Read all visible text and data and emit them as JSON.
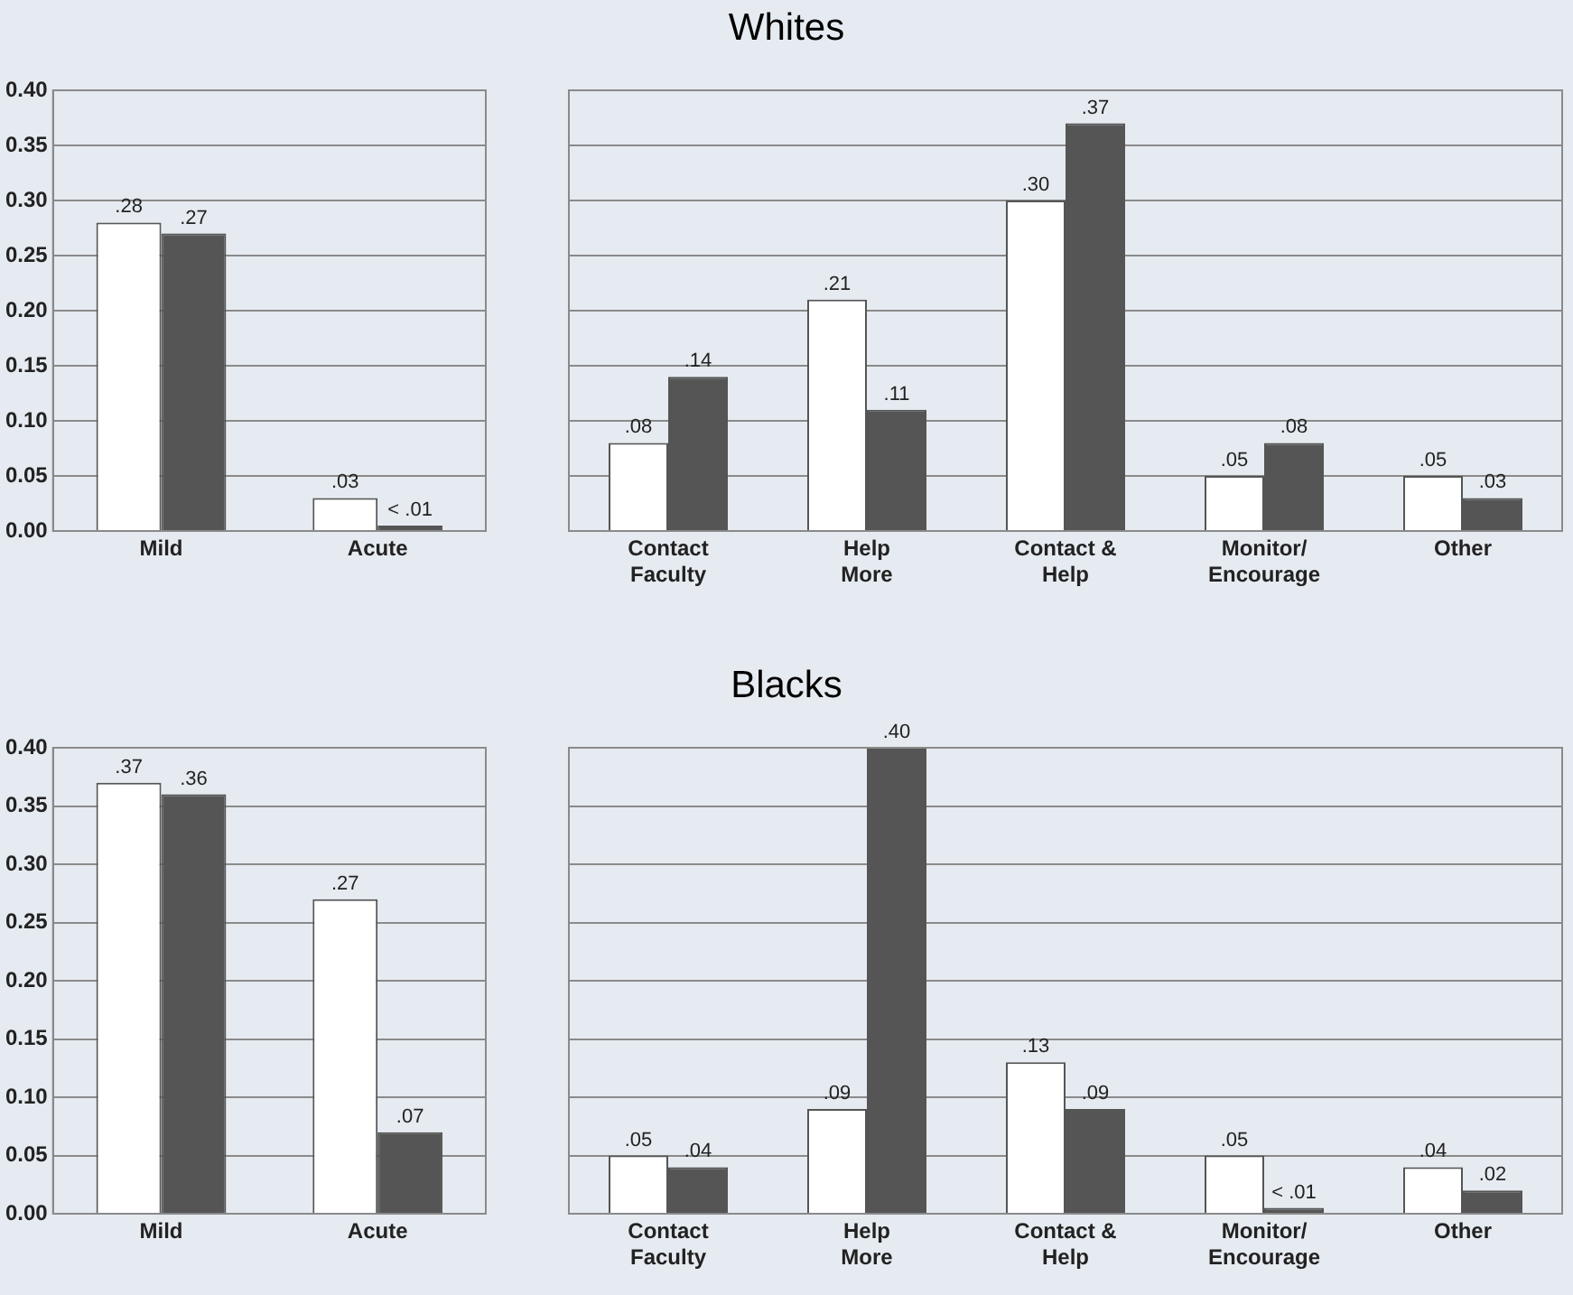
{
  "chart_data": [
    {
      "type": "bar",
      "categories": [
        "Mild",
        "Acute"
      ],
      "ylim": [
        0,
        0.4
      ],
      "yticks": [
        {
          "value": 0,
          "label": "0.00"
        },
        {
          "value": 0.05,
          "label": "0.05"
        },
        {
          "value": 0.1,
          "label": "0.10"
        },
        {
          "value": 0.15,
          "label": "0.15"
        },
        {
          "value": 0.2,
          "label": "0.20"
        },
        {
          "value": 0.25,
          "label": "0.25"
        },
        {
          "value": 0.3,
          "label": "0.30"
        },
        {
          "value": 0.35,
          "label": "0.35"
        },
        {
          "value": 0.4,
          "label": "0.40"
        }
      ],
      "grid": "y",
      "series": [
        {
          "color": "#ffffff",
          "values": [
            0.28,
            0.03
          ],
          "value_labels": [
            ".28",
            ".03"
          ]
        },
        {
          "color": "#555555",
          "values": [
            0.27,
            0.005
          ],
          "value_labels": [
            ".27",
            "< .01"
          ]
        }
      ]
    },
    {
      "type": "bar",
      "title": "Whites",
      "categories": [
        "Contact Faculty",
        "Help More",
        "Contact & Help",
        "Monitor/Encourage",
        "Other"
      ],
      "ylim": [
        0,
        0.4
      ],
      "yticks": [
        0,
        0.05,
        0.1,
        0.15,
        0.2,
        0.25,
        0.3,
        0.35,
        0.4
      ],
      "grid": "y",
      "tick_labels": "x",
      "series": [
        {
          "color": "#ffffff",
          "values": [
            0.08,
            0.21,
            0.3,
            0.05,
            0.05
          ],
          "value_labels": [
            ".08",
            ".21",
            ".30",
            ".05",
            ".05"
          ]
        },
        {
          "color": "#555555",
          "values": [
            0.14,
            0.11,
            0.37,
            0.08,
            0.03
          ],
          "value_labels": [
            ".14",
            ".11",
            ".37",
            ".08",
            ".03"
          ]
        }
      ]
    },
    {
      "type": "bar",
      "categories": [
        "Mild",
        "Acute"
      ],
      "ylim": [
        0,
        0.4
      ],
      "yticks": [
        {
          "value": 0,
          "label": "0.00"
        },
        {
          "value": 0.05,
          "label": "0.05"
        },
        {
          "value": 0.1,
          "label": "0.10"
        },
        {
          "value": 0.15,
          "label": "0.15"
        },
        {
          "value": 0.2,
          "label": "0.20"
        },
        {
          "value": 0.25,
          "label": "0.25"
        },
        {
          "value": 0.3,
          "label": "0.30"
        },
        {
          "value": 0.35,
          "label": "0.35"
        },
        {
          "value": 0.4,
          "label": "0.40"
        }
      ],
      "grid": "y",
      "series": [
        {
          "color": "#ffffff",
          "values": [
            0.37,
            0.27
          ],
          "value_labels": [
            ".37",
            ".27"
          ]
        },
        {
          "color": "#555555",
          "values": [
            0.36,
            0.07
          ],
          "value_labels": [
            ".36",
            ".07"
          ]
        }
      ]
    },
    {
      "type": "bar",
      "title": "Blacks",
      "categories": [
        "Contact Faculty",
        "Help More",
        "Contact & Help",
        "Monitor/Encourage",
        "Other"
      ],
      "ylim": [
        0,
        0.4
      ],
      "yticks": [
        0,
        0.05,
        0.1,
        0.15,
        0.2,
        0.25,
        0.3,
        0.35,
        0.4
      ],
      "grid": "y",
      "tick_labels": "x",
      "series": [
        {
          "color": "#ffffff",
          "values": [
            0.05,
            0.09,
            0.13,
            0.05,
            0.04
          ],
          "value_labels": [
            ".05",
            ".09",
            ".13",
            ".05",
            ".04"
          ]
        },
        {
          "color": "#555555",
          "values": [
            0.04,
            0.4,
            0.09,
            0.005,
            0.02
          ],
          "value_labels": [
            ".04",
            ".40",
            ".09",
            "< .01",
            ".02"
          ]
        }
      ]
    }
  ]
}
